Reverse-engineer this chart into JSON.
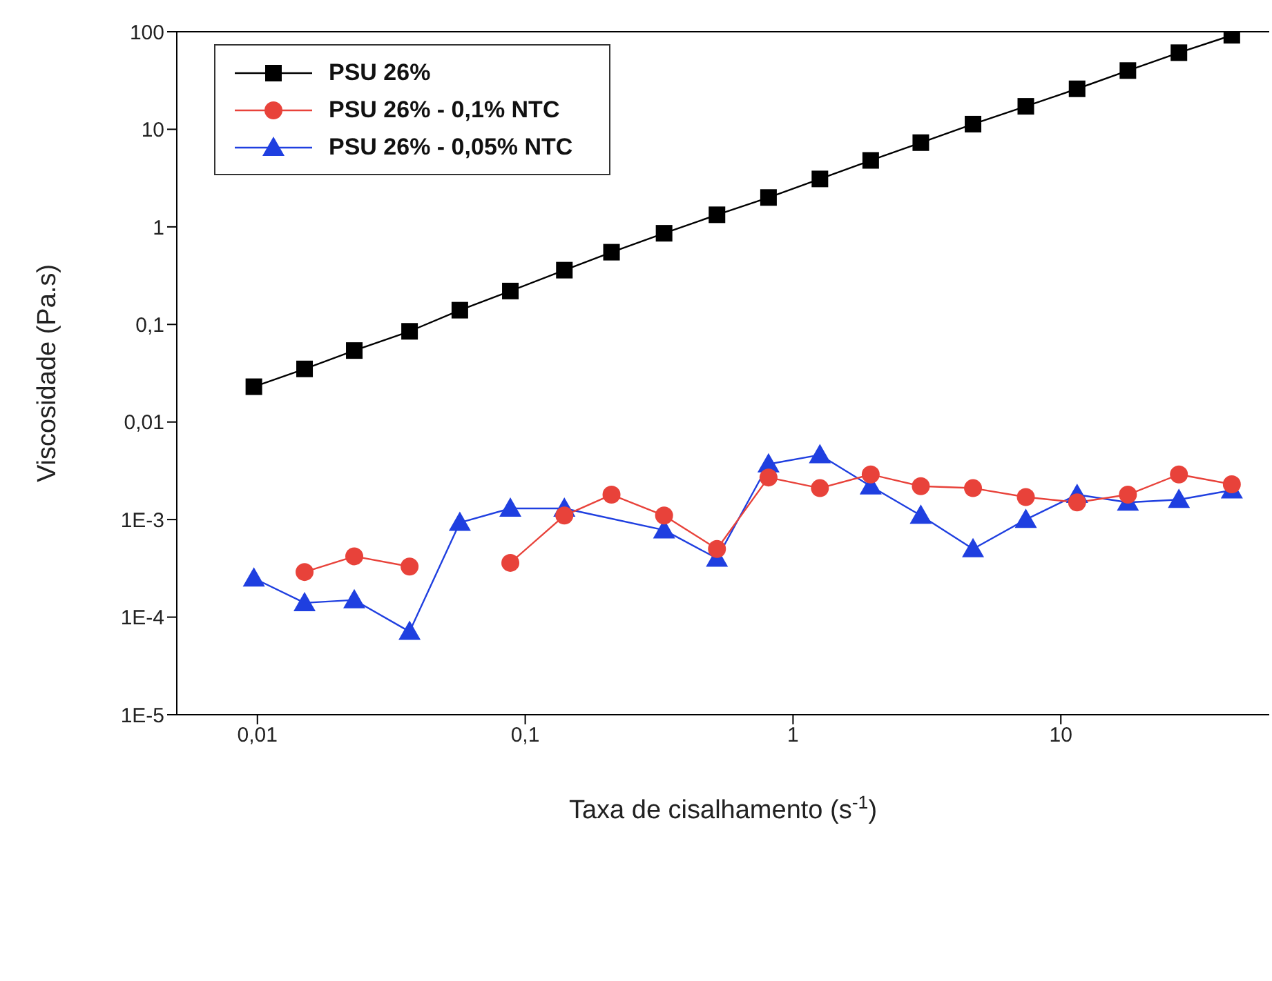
{
  "chart_data": {
    "type": "line",
    "xlabel": "Taxa de cisalhamento (s$^{-1}$)",
    "ylabel": "Viscosidade (Pa.s)",
    "log": "xy",
    "legend": "top left",
    "line_style": "solid",
    "xlim": [
      0.005,
      60
    ],
    "xticks": [
      {
        "value": 0.01,
        "label": "0,01"
      },
      {
        "value": 0.1,
        "label": "0,1"
      },
      1,
      10
    ],
    "ylim": [
      1e-05,
      100
    ],
    "yticks": [
      {
        "value": 1e-05,
        "label": "1E-5"
      },
      {
        "value": 0.0001,
        "label": "1E-4"
      },
      {
        "value": 0.001,
        "label": "1E-3"
      },
      {
        "value": 0.01,
        "label": "0,01"
      },
      {
        "value": 0.1,
        "label": "0,1"
      },
      1,
      10,
      100
    ],
    "x": [
      0.0097,
      0.015,
      0.023,
      0.037,
      0.057,
      0.088,
      0.14,
      0.21,
      0.33,
      0.52,
      0.81,
      1.26,
      1.95,
      3.0,
      4.7,
      7.4,
      11.5,
      17.8,
      27.6,
      43.5
    ],
    "series": [
      {
        "name": "PSU 26%",
        "color": "#000000",
        "marker": "square",
        "values": [
          0.023,
          0.035,
          0.054,
          0.085,
          0.14,
          0.22,
          0.36,
          0.55,
          0.86,
          1.33,
          2.0,
          3.1,
          4.8,
          7.3,
          11.3,
          17.2,
          26,
          40,
          61,
          92
        ]
      },
      {
        "name": "PSU 26% - 0,1% NTC",
        "color": "#e8423a",
        "marker": "circle",
        "values": [
          null,
          0.00029,
          0.00042,
          0.00033,
          null,
          0.00036,
          0.0011,
          0.0018,
          0.0011,
          0.0005,
          0.0027,
          0.0021,
          0.0029,
          0.0022,
          0.0021,
          0.0017,
          0.0015,
          0.0018,
          0.0029,
          0.0023
        ]
      },
      {
        "name": "PSU 26% - 0,05% NTC",
        "color": "#1f3fe0",
        "marker": "triangle",
        "x": [
          0.0097,
          0.015,
          0.023,
          0.037,
          0.057,
          0.088,
          0.14,
          0.33,
          0.52,
          0.81,
          1.26,
          1.95,
          3.0,
          4.7,
          7.4,
          11.5,
          17.8,
          27.6,
          43.5
        ],
        "values": [
          0.00025,
          0.00014,
          0.00015,
          7.1e-05,
          0.00093,
          0.0013,
          0.0013,
          0.00078,
          0.0004,
          0.0037,
          0.0046,
          0.0022,
          0.0011,
          0.0005,
          0.001,
          0.0018,
          0.0015,
          0.0016,
          0.002
        ]
      }
    ]
  }
}
